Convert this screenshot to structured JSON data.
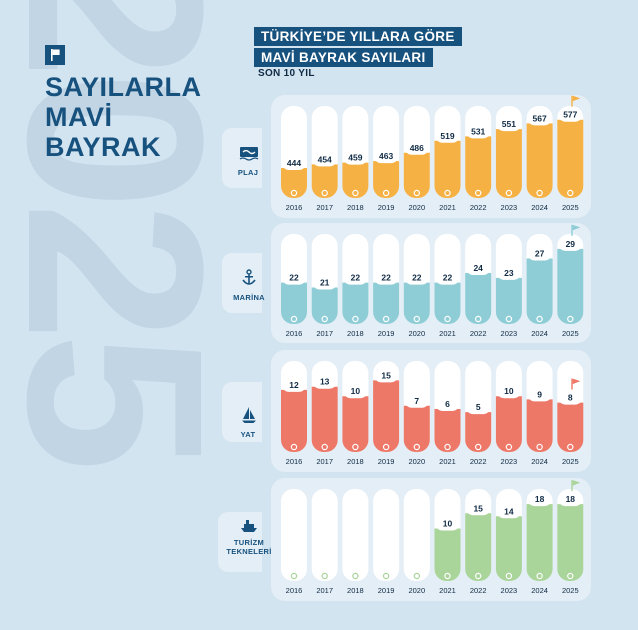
{
  "background_year": "2025",
  "main_title": [
    "SAYILARLA",
    "MAVİ",
    "BAYRAK"
  ],
  "headline": [
    "TÜRKİYE’DE YILLARA GÖRE",
    "MAVİ BAYRAK SAYILARI"
  ],
  "subhead": "SON 10 YIL",
  "chart_data": [
    {
      "type": "bar",
      "category": "PLAJ",
      "icon": "beach-icon",
      "color": "#f6b145",
      "categories": [
        "2016",
        "2017",
        "2018",
        "2019",
        "2020",
        "2021",
        "2022",
        "2023",
        "2024",
        "2025"
      ],
      "values": [
        444,
        454,
        459,
        463,
        486,
        519,
        531,
        551,
        567,
        577
      ],
      "ylim": [
        400,
        590
      ],
      "highlight_flag": "2025"
    },
    {
      "type": "bar",
      "category": "MARİNA",
      "icon": "anchor-icon",
      "color": "#8ecdd6",
      "categories": [
        "2016",
        "2017",
        "2018",
        "2019",
        "2020",
        "2021",
        "2022",
        "2023",
        "2024",
        "2025"
      ],
      "values": [
        22,
        21,
        22,
        22,
        22,
        22,
        24,
        23,
        27,
        29
      ],
      "ylim": [
        18,
        30
      ],
      "highlight_flag": "2025"
    },
    {
      "type": "bar",
      "category": "YAT",
      "icon": "sailboat-icon",
      "color": "#ee7868",
      "categories": [
        "2016",
        "2017",
        "2018",
        "2019",
        "2020",
        "2021",
        "2022",
        "2023",
        "2024",
        "2025"
      ],
      "values": [
        12,
        13,
        10,
        15,
        7,
        6,
        5,
        10,
        9,
        8
      ],
      "ylim": [
        0,
        17
      ],
      "highlight_flag": "2025"
    },
    {
      "type": "bar",
      "category": "TURİZM TEKNELERİ",
      "icon": "ship-icon",
      "color": "#a9d49a",
      "categories": [
        "2016",
        "2017",
        "2018",
        "2019",
        "2020",
        "2021",
        "2022",
        "2023",
        "2024",
        "2025"
      ],
      "values": [
        null,
        null,
        null,
        null,
        null,
        10,
        15,
        14,
        18,
        18
      ],
      "ylim": [
        0,
        20
      ],
      "highlight_flag": "2025"
    }
  ]
}
